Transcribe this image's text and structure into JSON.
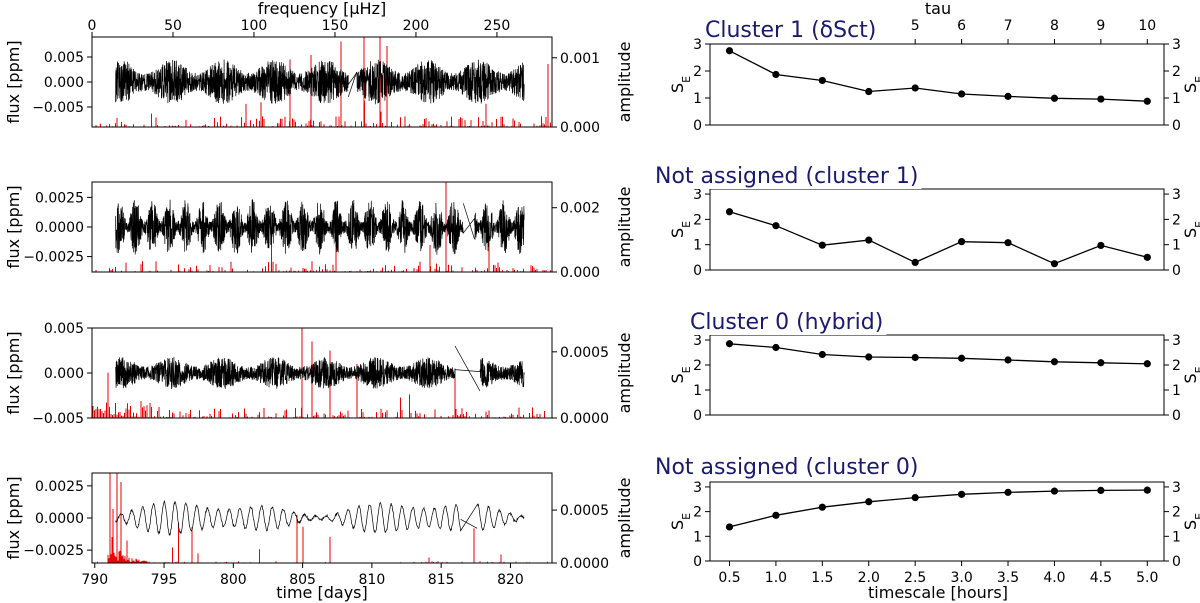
{
  "figure": {
    "top_axis_label": "frequency [μHz]",
    "bottom_axis_label": "time [days]",
    "left_ylabel": "flux [ppm]",
    "right_ylabel": "amplitude",
    "tau_label": "tau",
    "se_label": "S",
    "se_sub": "E",
    "timescale_label": "timescale [hours]"
  },
  "chart_data": [
    {
      "type": "line",
      "panel": "lightcurve-1",
      "xlabel": "time [days]",
      "ylabel": "flux [ppm]",
      "ylim": [
        -0.009,
        0.009
      ],
      "yticks": [
        "0.005",
        "0.000",
        "−0.005"
      ],
      "yticks_values": [
        0.005,
        0,
        -0.005
      ],
      "right_ylim": [
        0,
        0.0013
      ],
      "right_yticks": [
        "0.001",
        "0.000"
      ],
      "right_yticks_values": [
        0.001,
        0
      ],
      "time_range": [
        791.5,
        821.0
      ],
      "gap": [
        808.3,
        808.9
      ],
      "noise_amp": 0.0045,
      "seed": 11
    },
    {
      "type": "line",
      "panel": "lightcurve-2",
      "xlabel": "time [days]",
      "ylabel": "flux [ppm]",
      "ylim": [
        -0.0038,
        0.0038
      ],
      "yticks": [
        "0.0025",
        "0.0000",
        "−0.0025"
      ],
      "yticks_values": [
        0.0025,
        0,
        -0.0025
      ],
      "right_ylim": [
        0,
        0.0028
      ],
      "right_yticks": [
        "0.002",
        "0.000"
      ],
      "right_yticks_values": [
        0.002,
        0
      ],
      "time_range": [
        791.5,
        821.0
      ],
      "gap": [
        816.6,
        817.4
      ],
      "noise_amp": 0.0024,
      "seed": 23
    },
    {
      "type": "line",
      "panel": "lightcurve-3",
      "xlabel": "time [days]",
      "ylabel": "flux [ppm]",
      "ylim": [
        -0.005,
        0.005
      ],
      "yticks": [
        "0.005",
        "0.000",
        "−0.005"
      ],
      "yticks_values": [
        0.005,
        0,
        -0.005
      ],
      "right_ylim": [
        0,
        0.00068
      ],
      "right_yticks": [
        "0.0005",
        "0.0000"
      ],
      "right_yticks_values": [
        0.0005,
        0
      ],
      "time_range": [
        791.5,
        821.0
      ],
      "gap": [
        816.0,
        817.8
      ],
      "noise_amp": 0.0018,
      "seed": 37
    },
    {
      "type": "line",
      "panel": "lightcurve-4",
      "xlabel": "time [days]",
      "ylabel": "flux [ppm]",
      "ylim": [
        -0.0035,
        0.0035
      ],
      "yticks": [
        "0.0025",
        "0.0000",
        "−0.0025"
      ],
      "yticks_values": [
        0.0025,
        0,
        -0.0025
      ],
      "right_ylim": [
        0,
        0.00085
      ],
      "right_yticks": [
        "0.0005",
        "0.0000"
      ],
      "right_yticks_values": [
        0.0005,
        0
      ],
      "time_range": [
        791.5,
        821.0
      ],
      "gap": [
        816.4,
        817.6
      ],
      "noise_amp": 0.0002,
      "seed": 51,
      "xticks": [
        "790",
        "795",
        "800",
        "805",
        "810",
        "815",
        "820"
      ],
      "xticks_values": [
        790,
        795,
        800,
        805,
        810,
        815,
        820
      ],
      "xlim": [
        789.8,
        823.0
      ]
    },
    {
      "type": "line",
      "panel": "se-1",
      "title": "Cluster 1 (δSct)",
      "x": [
        0.5,
        1.0,
        1.5,
        2.0,
        2.5,
        3.0,
        3.5,
        4.0,
        4.5,
        5.0
      ],
      "values": [
        2.75,
        1.87,
        1.65,
        1.24,
        1.37,
        1.15,
        1.06,
        0.99,
        0.96,
        0.88
      ],
      "ylim": [
        0,
        3
      ],
      "yticks": [
        "0",
        "1",
        "2",
        "3"
      ],
      "yticks_values": [
        0,
        1,
        2,
        3
      ],
      "tau_ticks": [
        "5",
        "6",
        "7",
        "8",
        "9",
        "10"
      ],
      "tau_values": [
        5,
        6,
        7,
        8,
        9,
        10
      ]
    },
    {
      "type": "line",
      "panel": "se-2",
      "title": "Not assigned (cluster 1)",
      "x": [
        0.5,
        1.0,
        1.5,
        2.0,
        2.5,
        3.0,
        3.5,
        4.0,
        4.5,
        5.0
      ],
      "values": [
        2.3,
        1.75,
        0.98,
        1.18,
        0.3,
        1.12,
        1.08,
        0.25,
        0.97,
        0.5
      ],
      "ylim": [
        0,
        3.2
      ],
      "yticks": [
        "0",
        "1",
        "2",
        "3"
      ],
      "yticks_values": [
        0,
        1,
        2,
        3
      ]
    },
    {
      "type": "line",
      "panel": "se-3",
      "title": "Cluster 0 (hybrid)",
      "x": [
        0.5,
        1.0,
        1.5,
        2.0,
        2.5,
        3.0,
        3.5,
        4.0,
        4.5,
        5.0
      ],
      "values": [
        2.85,
        2.7,
        2.42,
        2.32,
        2.3,
        2.27,
        2.2,
        2.13,
        2.09,
        2.05
      ],
      "ylim": [
        0,
        3.2
      ],
      "yticks": [
        "0",
        "1",
        "2",
        "3"
      ],
      "yticks_values": [
        0,
        1,
        2,
        3
      ]
    },
    {
      "type": "line",
      "panel": "se-4",
      "title": "Not assigned (cluster 0)",
      "x": [
        0.5,
        1.0,
        1.5,
        2.0,
        2.5,
        3.0,
        3.5,
        4.0,
        4.5,
        5.0
      ],
      "values": [
        1.38,
        1.85,
        2.18,
        2.4,
        2.57,
        2.7,
        2.78,
        2.83,
        2.86,
        2.87
      ],
      "ylim": [
        0,
        3.2
      ],
      "yticks": [
        "0",
        "1",
        "2",
        "3"
      ],
      "yticks_values": [
        0,
        1,
        2,
        3
      ],
      "xticks": [
        "0.5",
        "1.0",
        "1.5",
        "2.0",
        "2.5",
        "3.0",
        "3.5",
        "4.0",
        "4.5",
        "5.0"
      ],
      "xticks_values": [
        0.5,
        1,
        1.5,
        2,
        2.5,
        3,
        3.5,
        4,
        4.5,
        5
      ],
      "xlim": [
        0.29,
        5.18
      ]
    }
  ],
  "frequency_axis": {
    "ticks": [
      "0",
      "50",
      "100",
      "150",
      "200",
      "250"
    ],
    "values": [
      0,
      50,
      100,
      150,
      200,
      250
    ],
    "xlim": [
      0,
      284
    ]
  },
  "colors": {
    "flux": "#000000",
    "amplitude": "#ee0000",
    "title": "#1a1a6e"
  }
}
